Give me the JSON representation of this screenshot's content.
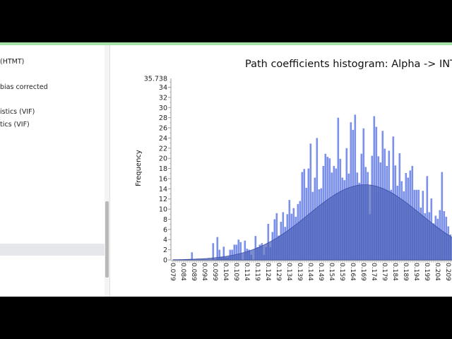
{
  "sidebar": {
    "items": [
      "(HTMT)",
      "bias corrected",
      "istics (VIF)",
      "tics (VIF)"
    ]
  },
  "chart_data": {
    "type": "bar",
    "title": "Path coefficients histogram: Alpha -> INT_",
    "xlabel": "",
    "ylabel": "Frequency",
    "ylim": [
      0,
      35.738
    ],
    "y_max_label": "35.738",
    "y_ticks": [
      0,
      2,
      4,
      6,
      8,
      10,
      12,
      14,
      16,
      18,
      20,
      22,
      24,
      26,
      28,
      30,
      32,
      34
    ],
    "x_tick_labels": [
      "0.079",
      "0.084",
      "0.089",
      "0.094",
      "0.099",
      "0.104",
      "0.109",
      "0.114",
      "0.119",
      "0.124",
      "0.129",
      "0.134",
      "0.139",
      "0.144",
      "0.149",
      "0.154",
      "0.159",
      "0.164",
      "0.169",
      "0.174",
      "0.179",
      "0.184",
      "0.189",
      "0.194",
      "0.199",
      "0.204",
      "0.209"
    ],
    "bin_start": 0.079,
    "bin_width": 0.001,
    "values": [
      0,
      0,
      0,
      0,
      0,
      0,
      0,
      0,
      0,
      1.5,
      0,
      0,
      0,
      0,
      0,
      0,
      0,
      0,
      0,
      3.3,
      0,
      4.5,
      2,
      0.5,
      2.6,
      0.5,
      0.5,
      2,
      2,
      3,
      3,
      4,
      3.5,
      0,
      3.8,
      2.2,
      2,
      1,
      0,
      4.7,
      2.5,
      3,
      3.3,
      1,
      2.5,
      7.1,
      2.5,
      5.5,
      8,
      9.2,
      4.8,
      7.5,
      9.4,
      6.5,
      9,
      11.8,
      9.1,
      10.2,
      8.5,
      11,
      11.6,
      17.3,
      17.9,
      14.2,
      18,
      22.9,
      13.4,
      16.2,
      24,
      13.9,
      14.1,
      18.5,
      20.9,
      20.3,
      20,
      17.2,
      18.5,
      18,
      28,
      19.9,
      16.2,
      15.7,
      22,
      17,
      27.1,
      25.6,
      28.6,
      17.2,
      15.2,
      20.9,
      25.9,
      18.3,
      17.3,
      9,
      20.5,
      28.3,
      26.2,
      20.4,
      19.2,
      25.4,
      21.9,
      18.5,
      21.5,
      13.8,
      24.3,
      18.6,
      14.6,
      21,
      15.5,
      13.5,
      17.1,
      16.2,
      17.6,
      18.5,
      13.8,
      13.8,
      13.8,
      10.3,
      13.6,
      9.2,
      16.5,
      9.4,
      12.1,
      7.2,
      8.7,
      8.1,
      9.8,
      17.3,
      9.6,
      8.5,
      6.6,
      5
    ],
    "normal_fit": {
      "mean": 0.1695,
      "sd": 0.0265,
      "peak": 14.8
    },
    "colors": {
      "bar": "#7b90e8",
      "fit": "#4a5fb8",
      "axis": "#999999"
    },
    "grid": false
  }
}
